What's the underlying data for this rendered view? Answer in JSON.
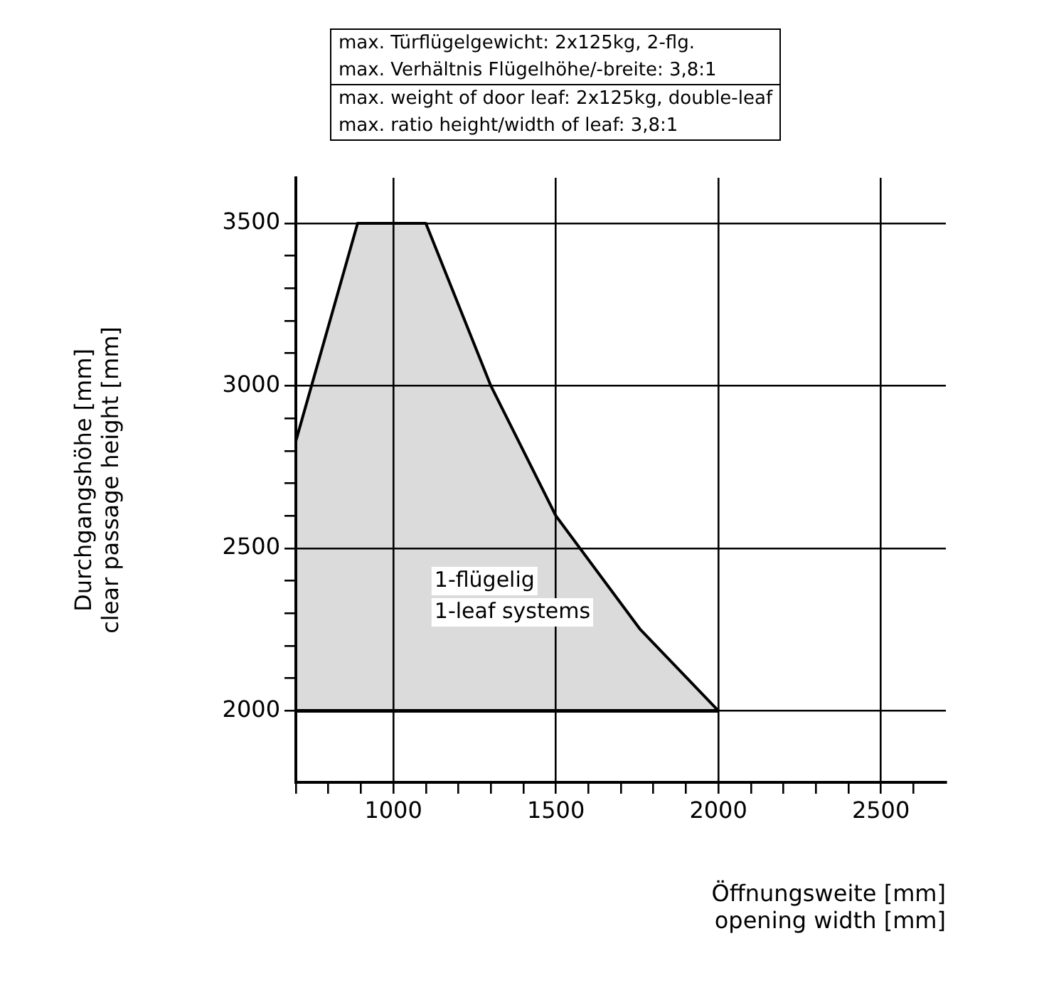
{
  "chart_data": {
    "type": "area",
    "xlabel": "Öffnungsweite [mm]\nopening width [mm]",
    "ylabel": "Durchgangshöhe [mm]\nclear passage height [mm]",
    "x": [
      700,
      890,
      1100,
      1300,
      1500,
      1760,
      2000
    ],
    "series": [
      {
        "name": "1-flügelig\n1-leaf systems",
        "color": "#000000",
        "values": [
          2830,
          3500,
          3500,
          3000,
          2600,
          2250,
          2000
        ]
      },
      {
        "type": "line",
        "color": "#000000",
        "x": [
          700,
          2000
        ],
        "values": [
          2000,
          2000
        ]
      }
    ],
    "xlim": [
      700,
      2700
    ],
    "xticks": [
      {
        "value": 700,
        "label": null
      },
      {
        "value": 800,
        "label": null
      },
      {
        "value": 900,
        "label": null
      },
      1000,
      {
        "value": 1100,
        "label": null
      },
      {
        "value": 1200,
        "label": null
      },
      {
        "value": 1300,
        "label": null
      },
      {
        "value": 1400,
        "label": null
      },
      1500,
      {
        "value": 1600,
        "label": null
      },
      {
        "value": 1700,
        "label": null
      },
      {
        "value": 1800,
        "label": null
      },
      {
        "value": 1900,
        "label": null
      },
      2000,
      {
        "value": 2100,
        "label": null
      },
      {
        "value": 2200,
        "label": null
      },
      {
        "value": 2300,
        "label": null
      },
      {
        "value": 2400,
        "label": null
      },
      2500,
      {
        "value": 2600,
        "label": null
      }
    ],
    "ylim": [
      1780,
      3640
    ],
    "yticks": [
      2000,
      {
        "value": 2100,
        "label": null
      },
      {
        "value": 2200,
        "label": null
      },
      {
        "value": 2300,
        "label": null
      },
      {
        "value": 2400,
        "label": null
      },
      2500,
      {
        "value": 2600,
        "label": null
      },
      {
        "value": 2700,
        "label": null
      },
      {
        "value": 2800,
        "label": null
      },
      {
        "value": 2900,
        "label": null
      },
      3000,
      {
        "value": 3100,
        "label": null
      },
      {
        "value": 3200,
        "label": null
      },
      {
        "value": 3300,
        "label": null
      },
      {
        "value": 3400,
        "label": null
      },
      3500
    ],
    "grid": true,
    "annotations": [
      "max. Türflügelgewicht: 2x125kg, 2-flg.",
      "max. Verhältnis Flügelhöhe/-breite: 3,8:1",
      "max. weight of door leaf: 2x125kg, double-leaf",
      "max. ratio height/width of leaf: 3,8:1"
    ]
  }
}
